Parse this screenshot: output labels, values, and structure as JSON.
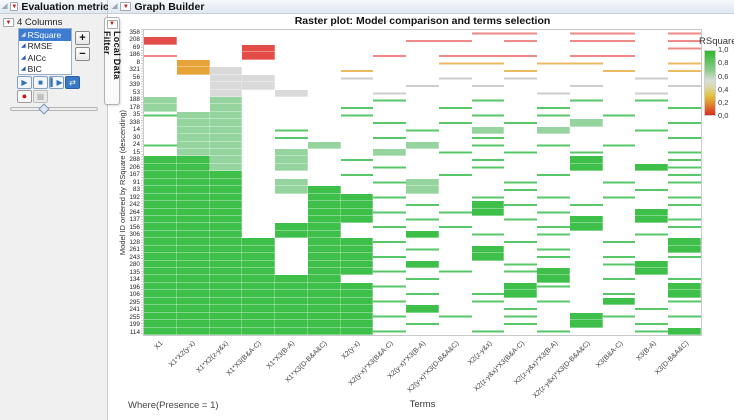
{
  "left_panel": {
    "title": "Evaluation metric",
    "columns_header": "4 Columns",
    "columns": [
      {
        "label": "RSquare",
        "selected": true
      },
      {
        "label": "RMSE",
        "selected": false
      },
      {
        "label": "AICc",
        "selected": false
      },
      {
        "label": "BIC",
        "selected": false
      }
    ],
    "buttons": {
      "add": "+",
      "remove": "−",
      "play": "▶",
      "stop": "■",
      "step": "▍▶",
      "loop": "⇄",
      "record": "●",
      "save": "▦"
    },
    "slider": {
      "value_percent": 38
    }
  },
  "filter_tab": {
    "label": "Local Data Filter"
  },
  "graph_panel": {
    "title": "Graph Builder"
  },
  "footer": {
    "where_text": "Where(Presence = 1)"
  },
  "icons": {
    "red_triangle": "▼",
    "disclosure": "◢",
    "expand": "▷",
    "column": "◢"
  },
  "chart_data": {
    "type": "heatmap",
    "title": "Raster plot: Model comparison and terms selection",
    "xlabel": "Terms",
    "ylabel": "Model ID ordered by RSquare (descending)",
    "x_categories": [
      "X1",
      "X1*X2(y-x)",
      "X1*X2(z-y&x)",
      "X1*X3(B&A-C)",
      "X1*X3(B-A)",
      "X1*X3(D-B&A&C)",
      "X2(y-x)",
      "X2(y-x)*X3(B&A-C)",
      "X2(y-x)*X3(B-A)",
      "X2(y-x)*X3(D-B&A&C)",
      "X2(z-y&x)",
      "X2(z-y&x)*X3(B&A-C)",
      "X2(z-y&x)*X3(B-A)",
      "X2(z-y&x)*X3(D-B&A&C)",
      "X3(B&A-C)",
      "X3(B-A)",
      "X3(D-B&A&C)"
    ],
    "y_categories": [
      "358",
      "208",
      "69",
      "186",
      "8",
      "321",
      "56",
      "339",
      "53",
      "188",
      "178",
      "35",
      "338",
      "14",
      "30",
      "24",
      "15",
      "288",
      "206",
      "167",
      "91",
      "83",
      "192",
      "242",
      "264",
      "137",
      "156",
      "306",
      "128",
      "261",
      "243",
      "280",
      "135",
      "134",
      "196",
      "106",
      "295",
      "241",
      "255",
      "199",
      "114"
    ],
    "legend": {
      "title": "RSquare",
      "ticks": [
        "1,0",
        "0,8",
        "0,6",
        "0,4",
        "0,2",
        "0,0"
      ],
      "gradient_stops": [
        [
          "0%",
          "#2eb82e"
        ],
        [
          "30%",
          "#8ccb8c"
        ],
        [
          "46%",
          "#d9ded9"
        ],
        [
          "58%",
          "#dcd6a0"
        ],
        [
          "70%",
          "#e0c33e"
        ],
        [
          "82%",
          "#e08c2e"
        ],
        [
          "100%",
          "#da2d22"
        ]
      ]
    },
    "palette": {
      "solid": {
        "G": "#3dbf4a",
        "g": "#95d49e",
        "R": "#e44c48",
        "O": "#e6a438",
        "Y": "#d9d9d9"
      },
      "stripe": {
        "h": "#58c768",
        "r": "#ef8a86",
        "o": "#ecba60",
        "y": "#cdcdcd"
      },
      "empty": "#ffffff"
    },
    "grid": [
      "WWWWWWWWWWrrWrrWr",
      "RWWWWWWWrrWrWrrWr",
      "WWWRWWWWWWWWWWWWr",
      "rWWRWWWrWrrrWrrWW",
      "WOWWWWWWWooWooWWo",
      "WOYWWWoWWWWoWWoWo",
      "WWYYWWyWWyWyWWWyW",
      "WWYYWWWWyWyWWyWWy",
      "WWYWYWWyWWWWyWWyW",
      "gWgWWWWhWWhWWhWhW",
      "gWgWWWhWWhWWhWWWh",
      "hggWWWhWWWhWhWhWW",
      "WggWWWWhWhWhWgWWh",
      "WggWhWWWhWgWgWWhW",
      "WggWhWWhWWhWWWWWh",
      "hggWWgWWgWhWhWhWW",
      "WggWgWWgWhWhWhWWh",
      "GGgWgWhWWWhWWGWWh",
      "GGgWgWWhWWhWWGWGh",
      "GGGWWWhWWhWWhWWWh",
      "GGGWgWWhgWWhWWhWh",
      "GGGWgGWWgWWhWWWhW",
      "GGGWWGGhWWhWhWhWh",
      "GGGWWGGWhWGhWhWWh",
      "GGGWWGGhWhGWhWWGW",
      "GGGWWGGWhWWhWGWGh",
      "GGGWGGWhWhWWhGWWh",
      "GGGWGGWWGWhWhWWhW",
      "GGGGWGGhWWWhWWhWG",
      "GGGGWGGWhWGWhWWWG",
      "GGGGWGGhWWGWhWhWh",
      "GGGGWGGWGWWhWWhGW",
      "GGGGWGGhWhWhGWWGW",
      "GGGGGGWWhWWWGWhWh",
      "GGGGGGGhWWWGhWWWG",
      "GGGGGGGWhWhGWWhWG",
      "GGGGGGGhWWhWhWGWh",
      "GGGGGGGWGWWhWWWhW",
      "GGGGGGGhWhWhWGhWh",
      "GGGGGGGWhWWhWGWhW",
      "GGGGGGGhWWhWhWWhG"
    ]
  }
}
